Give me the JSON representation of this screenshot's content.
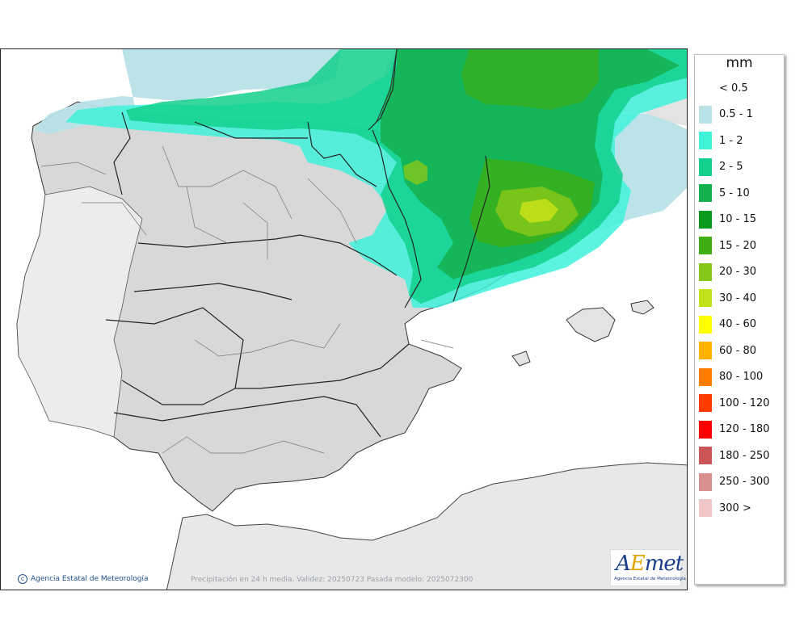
{
  "map": {
    "credit_text": "Agencia Estatal de Meteorología",
    "footer_note": "Precipitación en 24 h media. Validez: 20250723 Pasada modelo: 2025072300",
    "logo": {
      "wordmark_a": "A",
      "wordmark_e": "E",
      "wordmark_rest": "met",
      "subtitle": "Agencia Estatal de Meteorología"
    }
  },
  "legend": {
    "title": "mm",
    "items": [
      {
        "label": "< 0.5",
        "color": "#ffffff"
      },
      {
        "label": "0.5 - 1",
        "color": "#b8e2e6"
      },
      {
        "label": "1 - 2",
        "color": "#3ff2da"
      },
      {
        "label": "2 - 5",
        "color": "#12d08c"
      },
      {
        "label": "5 - 10",
        "color": "#13b04e"
      },
      {
        "label": "10 - 15",
        "color": "#0a9a1c"
      },
      {
        "label": "15 - 20",
        "color": "#3fae12"
      },
      {
        "label": "20 - 30",
        "color": "#86c81a"
      },
      {
        "label": "30 - 40",
        "color": "#c3e11a"
      },
      {
        "label": "40 - 60",
        "color": "#ffff00"
      },
      {
        "label": "60 - 80",
        "color": "#ffb300"
      },
      {
        "label": "80 - 100",
        "color": "#ff7c00"
      },
      {
        "label": "100 - 120",
        "color": "#ff3c00"
      },
      {
        "label": "120 - 180",
        "color": "#ff0000"
      },
      {
        "label": "180 - 250",
        "color": "#cc5555"
      },
      {
        "label": "250 - 300",
        "color": "#da8f8f"
      },
      {
        "label": "300 >",
        "color": "#f0c6c6"
      }
    ]
  }
}
